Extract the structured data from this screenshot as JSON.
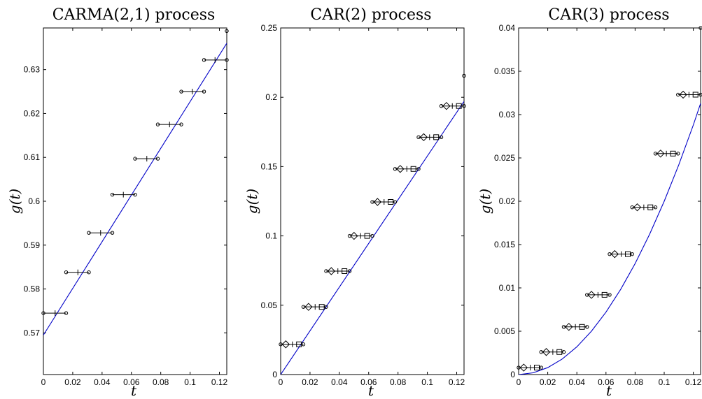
{
  "chart_data": [
    {
      "type": "scatter",
      "title": "CARMA(2,1) process",
      "xlabel": "t",
      "ylabel": "g(t)",
      "xlim": [
        0,
        0.125
      ],
      "ylim": [
        0.5605,
        0.6395
      ],
      "xticks": [
        0,
        0.02,
        0.04,
        0.06,
        0.08,
        0.1,
        0.12
      ],
      "xtick_labels": [
        "0",
        "0.02",
        "0.04",
        "0.06",
        "0.08",
        "0.1",
        "0.12"
      ],
      "yticks": [
        0.57,
        0.58,
        0.59,
        0.6,
        0.61,
        0.62,
        0.63
      ],
      "ytick_labels": [
        "0.57",
        "0.58",
        "0.59",
        "0.6",
        "0.61",
        "0.62",
        "0.63"
      ],
      "line": {
        "x": [
          0,
          0.125
        ],
        "y": [
          0.5695,
          0.636
        ]
      },
      "points": [
        {
          "y": 0.5745,
          "left": 0.0,
          "mid": 0.008,
          "right": 0.0155
        },
        {
          "y": 0.5838,
          "left": 0.0155,
          "mid": 0.0235,
          "right": 0.031
        },
        {
          "y": 0.5928,
          "left": 0.031,
          "mid": 0.039,
          "right": 0.047
        },
        {
          "y": 0.6015,
          "left": 0.047,
          "mid": 0.0545,
          "right": 0.0625
        },
        {
          "y": 0.6097,
          "left": 0.0625,
          "mid": 0.0705,
          "right": 0.078
        },
        {
          "y": 0.6175,
          "left": 0.078,
          "mid": 0.086,
          "right": 0.094
        },
        {
          "y": 0.625,
          "left": 0.094,
          "mid": 0.1015,
          "right": 0.1095
        },
        {
          "y": 0.6322,
          "left": 0.1095,
          "mid": 0.117,
          "right": 0.125
        }
      ],
      "extra_points": [
        {
          "x": 0.125,
          "y": 0.6388
        }
      ]
    },
    {
      "type": "scatter",
      "title": "CAR(2) process",
      "xlabel": "t",
      "ylabel": "g(t)",
      "xlim": [
        0,
        0.125
      ],
      "ylim": [
        0,
        0.25
      ],
      "xticks": [
        0,
        0.02,
        0.04,
        0.06,
        0.08,
        0.1,
        0.12
      ],
      "xtick_labels": [
        "0",
        "0.02",
        "0.04",
        "0.06",
        "0.08",
        "0.1",
        "0.12"
      ],
      "yticks": [
        0,
        0.05,
        0.1,
        0.15,
        0.2,
        0.25
      ],
      "ytick_labels": [
        "0",
        "0.05",
        "0.1",
        "0.15",
        "0.2",
        "0.25"
      ],
      "line": {
        "x": [
          0,
          0.125
        ],
        "y": [
          0,
          0.197
        ]
      },
      "points": [
        {
          "y": 0.0218,
          "left": 0.0,
          "diamond": 0.0035,
          "mid": 0.008,
          "square": 0.0125,
          "right": 0.0155
        },
        {
          "y": 0.0488,
          "left": 0.0155,
          "diamond": 0.019,
          "mid": 0.0235,
          "square": 0.028,
          "right": 0.031
        },
        {
          "y": 0.0746,
          "left": 0.031,
          "diamond": 0.0345,
          "mid": 0.039,
          "square": 0.0435,
          "right": 0.047
        },
        {
          "y": 0.1,
          "left": 0.047,
          "diamond": 0.05,
          "mid": 0.0545,
          "square": 0.059,
          "right": 0.0625
        },
        {
          "y": 0.1245,
          "left": 0.0625,
          "diamond": 0.066,
          "mid": 0.0705,
          "square": 0.075,
          "right": 0.078
        },
        {
          "y": 0.1483,
          "left": 0.078,
          "diamond": 0.0815,
          "mid": 0.086,
          "square": 0.0905,
          "right": 0.094
        },
        {
          "y": 0.1712,
          "left": 0.094,
          "diamond": 0.0975,
          "mid": 0.1015,
          "square": 0.106,
          "right": 0.1095
        },
        {
          "y": 0.1937,
          "left": 0.1095,
          "diamond": 0.113,
          "mid": 0.117,
          "square": 0.1215,
          "right": 0.125
        }
      ],
      "extra_points": [
        {
          "x": 0.125,
          "y": 0.2155
        }
      ]
    },
    {
      "type": "scatter",
      "title": "CAR(3) process",
      "xlabel": "t",
      "ylabel": "g(t)",
      "xlim": [
        0,
        0.125
      ],
      "ylim": [
        0,
        0.04
      ],
      "xticks": [
        0,
        0.02,
        0.04,
        0.06,
        0.08,
        0.1,
        0.12
      ],
      "xtick_labels": [
        "0",
        "0.02",
        "0.04",
        "0.06",
        "0.08",
        "0.1",
        "0.12"
      ],
      "yticks": [
        0,
        0.005,
        0.01,
        0.015,
        0.02,
        0.025,
        0.03,
        0.035,
        0.04
      ],
      "ytick_labels": [
        "0",
        "0.005",
        "0.01",
        "0.015",
        "0.02",
        "0.025",
        "0.03",
        "0.035",
        "0.04"
      ],
      "curve": {
        "x": [
          0,
          0.01,
          0.02,
          0.03,
          0.04,
          0.05,
          0.06,
          0.07,
          0.08,
          0.09,
          0.1,
          0.11,
          0.12,
          0.125
        ],
        "y": [
          0,
          0.0002,
          0.0008,
          0.0018,
          0.0032,
          0.005,
          0.0072,
          0.0098,
          0.0128,
          0.0162,
          0.02,
          0.0242,
          0.0288,
          0.0313
        ]
      },
      "points": [
        {
          "y": 0.0008,
          "left": 0.0,
          "diamond": 0.0035,
          "mid": 0.008,
          "square": 0.0125,
          "right": 0.0155
        },
        {
          "y": 0.0026,
          "left": 0.0155,
          "diamond": 0.019,
          "mid": 0.0235,
          "square": 0.028,
          "right": 0.031
        },
        {
          "y": 0.0055,
          "left": 0.031,
          "diamond": 0.0345,
          "mid": 0.039,
          "square": 0.0435,
          "right": 0.047
        },
        {
          "y": 0.0092,
          "left": 0.047,
          "diamond": 0.05,
          "mid": 0.0545,
          "square": 0.059,
          "right": 0.0625
        },
        {
          "y": 0.0139,
          "left": 0.0625,
          "diamond": 0.066,
          "mid": 0.0705,
          "square": 0.075,
          "right": 0.078
        },
        {
          "y": 0.0193,
          "left": 0.078,
          "diamond": 0.0815,
          "mid": 0.086,
          "square": 0.0905,
          "right": 0.094
        },
        {
          "y": 0.0255,
          "left": 0.094,
          "diamond": 0.0975,
          "mid": 0.1015,
          "square": 0.106,
          "right": 0.1095
        },
        {
          "y": 0.0323,
          "left": 0.1095,
          "diamond": 0.113,
          "mid": 0.117,
          "square": 0.1215,
          "right": 0.125
        }
      ],
      "extra_points": [
        {
          "x": 0.125,
          "y": 0.04
        }
      ]
    }
  ]
}
